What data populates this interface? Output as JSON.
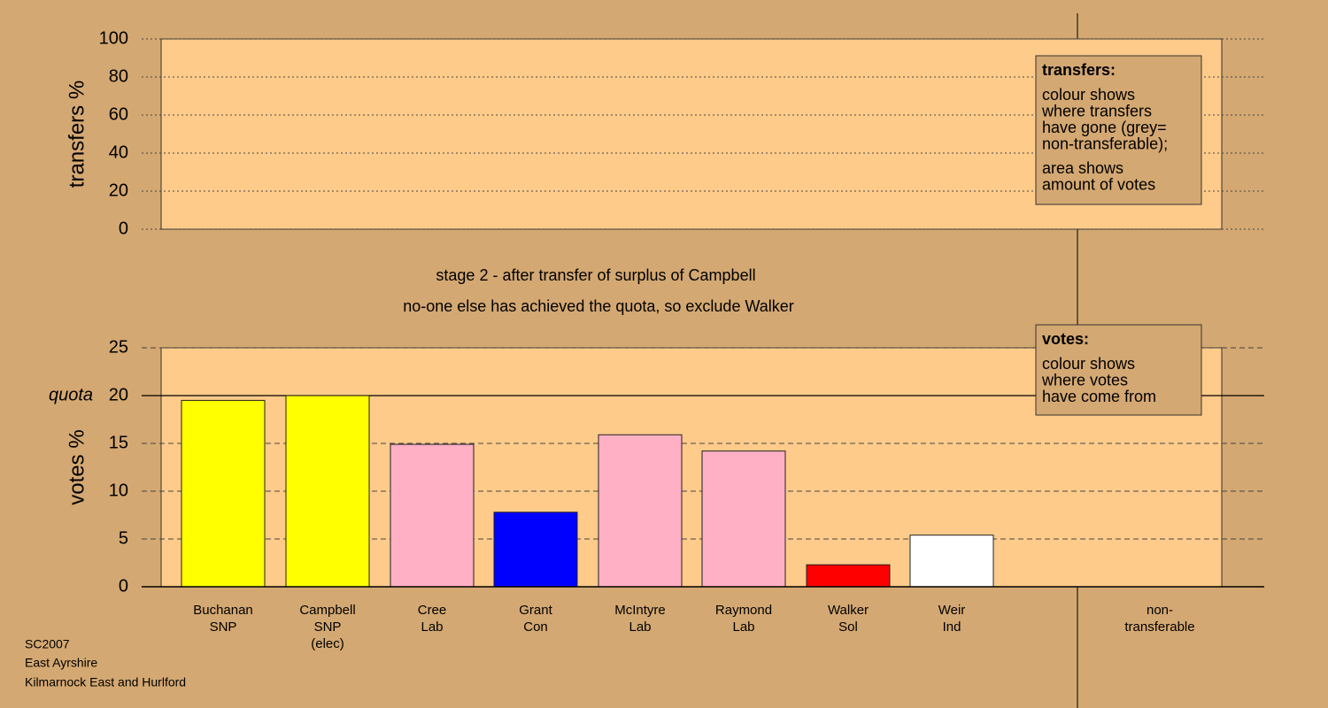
{
  "chart_data": [
    {
      "type": "bar",
      "y_label": "transfers %",
      "ylim": [
        0,
        100
      ],
      "yticks": [
        0,
        20,
        40,
        60,
        80,
        100
      ],
      "grid": true,
      "categories": [],
      "values": [],
      "note": {
        "title": "transfers:",
        "paragraphs": [
          [
            "colour shows",
            "where transfers",
            "have gone (grey=",
            "non-transferable);"
          ],
          [
            "area shows",
            "amount of votes"
          ]
        ]
      }
    },
    {
      "type": "bar",
      "y_label": "votes %",
      "ylim": [
        0,
        25
      ],
      "yticks": [
        0,
        5,
        10,
        15,
        20,
        25
      ],
      "grid": true,
      "quota": {
        "label": "quota",
        "value": 20
      },
      "categories": [
        [
          "Buchanan",
          "SNP"
        ],
        [
          "Campbell",
          "SNP",
          "(elec)"
        ],
        [
          "Cree",
          "Lab"
        ],
        [
          "Grant",
          "Con"
        ],
        [
          "McIntyre",
          "Lab"
        ],
        [
          "Raymond",
          "Lab"
        ],
        [
          "Walker",
          "Sol"
        ],
        [
          "Weir",
          "Ind"
        ]
      ],
      "values": [
        19.5,
        20.0,
        14.9,
        7.8,
        15.9,
        14.2,
        2.3,
        5.4
      ],
      "colors": [
        "#ffff00",
        "#ffff00",
        "#ffb0c4",
        "#0000ff",
        "#ffb0c4",
        "#ffb0c4",
        "#ff0000",
        "#ffffff"
      ],
      "non_transferable": {
        "label": [
          "non-",
          "transferable"
        ],
        "value": 0
      },
      "note": {
        "title": "votes:",
        "paragraphs": [
          [
            "colour shows",
            "where votes",
            "have come from"
          ]
        ]
      }
    }
  ],
  "captions": [
    "stage 2 - after transfer of surplus of Campbell",
    "no-one else has achieved the quota, so exclude Walker"
  ],
  "footer": [
    "SC2007",
    "East Ayrshire",
    "Kilmarnock East and Hurlford"
  ]
}
